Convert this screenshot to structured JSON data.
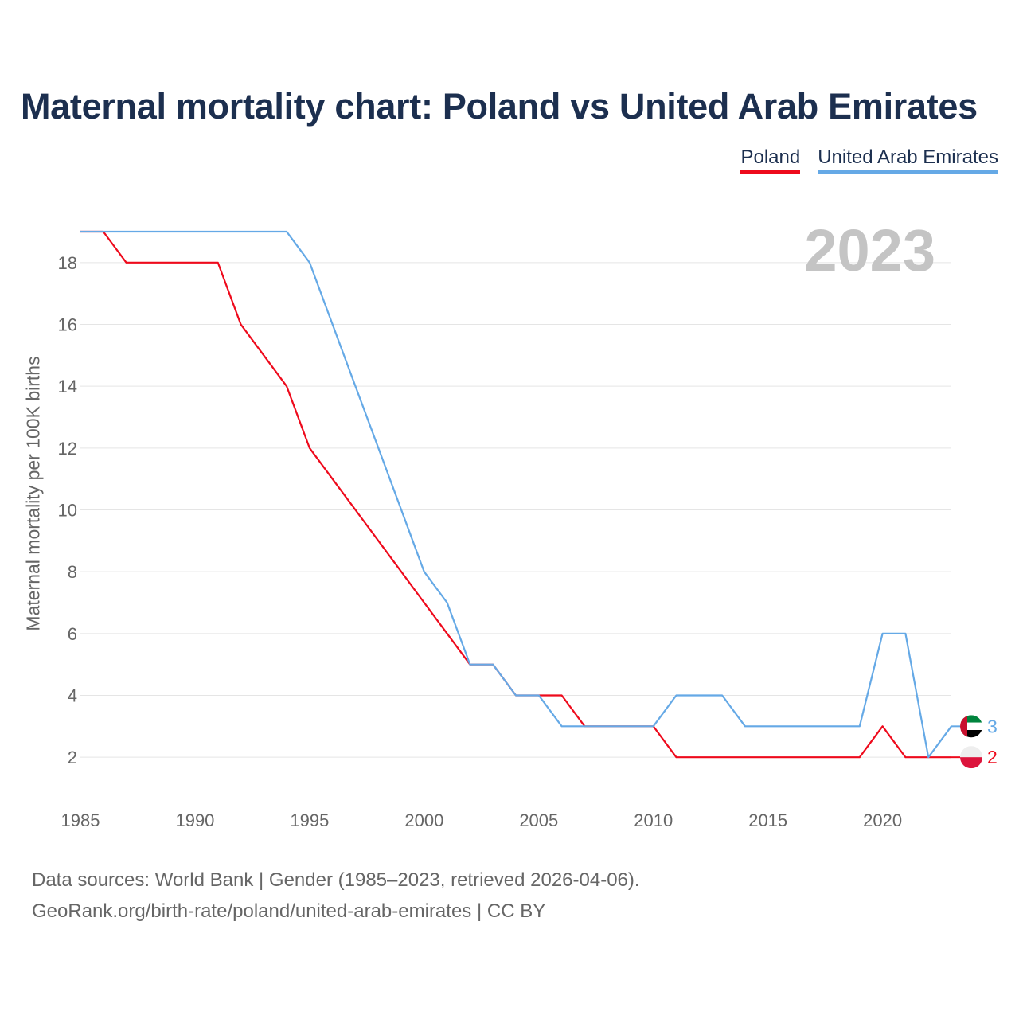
{
  "title": "Maternal mortality chart: Poland vs United Arab Emirates",
  "legend": {
    "poland": "Poland",
    "uae": "United Arab Emirates"
  },
  "year_watermark": "2023",
  "sources": {
    "line1": "Data sources: World Bank | Gender (1985–2023, retrieved 2026-04-06).",
    "line2": "GeoRank.org/birth-rate/poland/united-arab-emirates | CC BY"
  },
  "colors": {
    "poland": "#ee0a1c",
    "uae": "#65a9e6",
    "grid": "#e5e5e5",
    "tick": "#666666",
    "watermark": "#c4c4c4"
  },
  "end_labels": {
    "uae": "3",
    "poland": "2"
  },
  "chart_data": {
    "type": "line",
    "title": "Maternal mortality chart: Poland vs United Arab Emirates",
    "xlabel": "",
    "ylabel": "Maternal mortality per 100K births",
    "x": [
      1985,
      1986,
      1987,
      1988,
      1989,
      1990,
      1991,
      1992,
      1993,
      1994,
      1995,
      1996,
      1997,
      1998,
      1999,
      2000,
      2001,
      2002,
      2003,
      2004,
      2005,
      2006,
      2007,
      2008,
      2009,
      2010,
      2011,
      2012,
      2013,
      2014,
      2015,
      2016,
      2017,
      2018,
      2019,
      2020,
      2021,
      2022,
      2023
    ],
    "series": [
      {
        "name": "Poland",
        "color": "#ee0a1c",
        "values": [
          19,
          19,
          18,
          18,
          18,
          18,
          18,
          16,
          15,
          14,
          12,
          11,
          10,
          9,
          8,
          7,
          6,
          5,
          5,
          4,
          4,
          4,
          3,
          3,
          3,
          3,
          2,
          2,
          2,
          2,
          2,
          2,
          2,
          2,
          2,
          3,
          2,
          2,
          2
        ]
      },
      {
        "name": "United Arab Emirates",
        "color": "#65a9e6",
        "values": [
          19,
          19,
          19,
          19,
          19,
          19,
          19,
          19,
          19,
          19,
          18,
          16,
          14,
          12,
          10,
          8,
          7,
          5,
          5,
          4,
          4,
          3,
          3,
          3,
          3,
          3,
          4,
          4,
          4,
          3,
          3,
          3,
          3,
          3,
          3,
          6,
          6,
          2,
          3
        ]
      }
    ],
    "xticks": [
      1985,
      1990,
      1995,
      2000,
      2005,
      2010,
      2015,
      2020
    ],
    "yticks": [
      2,
      4,
      6,
      8,
      10,
      12,
      14,
      16,
      18
    ],
    "xlim": [
      1985,
      2023
    ],
    "ylim": [
      1,
      19
    ],
    "grid": true,
    "legend": "top-right"
  }
}
